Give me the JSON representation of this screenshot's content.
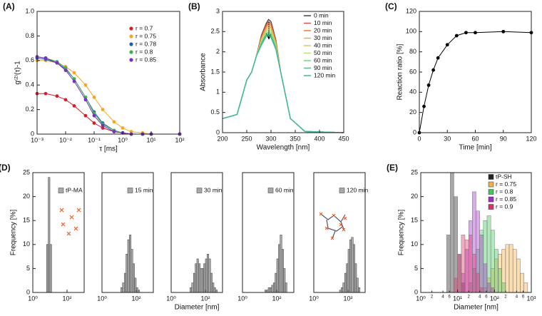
{
  "chart_data": [
    {
      "type": "line",
      "label": "(A)",
      "xlog": true,
      "markers": true,
      "legend": "upper right",
      "xlabel": "τ [ms]",
      "ylabel": "g⁽²⁾(τ)-1",
      "x": [
        0.001,
        0.002,
        0.005,
        0.01,
        0.02,
        0.05,
        0.1,
        0.2,
        0.5,
        1,
        2,
        5,
        10,
        100
      ],
      "xlim": [
        0.001,
        100
      ],
      "xticks": [
        {
          "value": 0.001,
          "label": "10⁻³"
        },
        {
          "value": 0.01,
          "label": "10⁻²"
        },
        {
          "value": 0.1,
          "label": "10⁻¹"
        },
        {
          "value": 1,
          "label": "10⁰"
        },
        {
          "value": 10,
          "label": "10¹"
        },
        {
          "value": 100,
          "label": "10²"
        }
      ],
      "ylim": [
        0,
        1
      ],
      "yticks": [
        0,
        0.2,
        0.4,
        0.6,
        0.8,
        {
          "value": 1,
          "label": "1.0"
        }
      ],
      "series": [
        {
          "name": "r = 0.7",
          "color": "#d0202a",
          "values": [
            0.33,
            0.33,
            0.31,
            0.28,
            0.23,
            0.15,
            0.09,
            0.05,
            0.02,
            0.01,
            0,
            0,
            0,
            0
          ]
        },
        {
          "name": "r = 0.75",
          "color": "#f5a623",
          "values": [
            0.6,
            0.6,
            0.58,
            0.55,
            0.5,
            0.4,
            0.3,
            0.2,
            0.1,
            0.05,
            0.02,
            0.01,
            0,
            0
          ]
        },
        {
          "name": "r = 0.78",
          "color": "#1f5fa8",
          "values": [
            0.62,
            0.61,
            0.58,
            0.53,
            0.45,
            0.3,
            0.18,
            0.09,
            0.03,
            0.01,
            0,
            0,
            0,
            0
          ]
        },
        {
          "name": "r = 0.8",
          "color": "#3cb44b",
          "values": [
            0.63,
            0.62,
            0.59,
            0.54,
            0.45,
            0.3,
            0.17,
            0.08,
            0.03,
            0.01,
            0,
            0,
            0,
            0
          ]
        },
        {
          "name": "r = 0.85",
          "color": "#7b2fbf",
          "values": [
            0.63,
            0.62,
            0.58,
            0.52,
            0.43,
            0.28,
            0.15,
            0.07,
            0.02,
            0.01,
            0,
            0,
            0,
            0
          ]
        }
      ]
    },
    {
      "type": "line",
      "label": "(B)",
      "legend": "upper right",
      "xlabel": "Wavelength [nm]",
      "ylabel": "Absorbance",
      "x": [
        200,
        230,
        250,
        260,
        270,
        280,
        290,
        295,
        300,
        310,
        320,
        340,
        370,
        450
      ],
      "xlim": [
        200,
        450
      ],
      "xticks": [
        200,
        250,
        300,
        350,
        400,
        450
      ],
      "ylim": [
        0,
        3
      ],
      "yticks": [
        0,
        0.5,
        1,
        1.5,
        2,
        2.5,
        3
      ],
      "series": [
        {
          "name": "0 min",
          "color": "#444444",
          "values": [
            0.35,
            0.45,
            1.3,
            1.5,
            1.9,
            2.4,
            2.7,
            2.8,
            2.75,
            2.3,
            1.5,
            0.35,
            0.03,
            0
          ]
        },
        {
          "name": "10 min",
          "color": "#d9534f",
          "values": [
            0.35,
            0.45,
            1.3,
            1.5,
            1.9,
            2.37,
            2.66,
            2.75,
            2.7,
            2.27,
            1.5,
            0.35,
            0.03,
            0
          ]
        },
        {
          "name": "20 min",
          "color": "#e8832a",
          "values": [
            0.35,
            0.45,
            1.3,
            1.5,
            1.9,
            2.34,
            2.62,
            2.7,
            2.65,
            2.24,
            1.5,
            0.35,
            0.03,
            0
          ]
        },
        {
          "name": "30 min",
          "color": "#f0a84a",
          "values": [
            0.35,
            0.45,
            1.3,
            1.5,
            1.9,
            2.31,
            2.58,
            2.65,
            2.6,
            2.21,
            1.5,
            0.35,
            0.03,
            0
          ]
        },
        {
          "name": "40 min",
          "color": "#d8c86a",
          "values": [
            0.35,
            0.45,
            1.3,
            1.5,
            1.9,
            2.28,
            2.54,
            2.6,
            2.55,
            2.18,
            1.5,
            0.35,
            0.03,
            0
          ]
        },
        {
          "name": "50 min",
          "color": "#b8e07a",
          "values": [
            0.35,
            0.45,
            1.3,
            1.5,
            1.9,
            2.25,
            2.5,
            2.55,
            2.5,
            2.15,
            1.5,
            0.35,
            0.03,
            0
          ]
        },
        {
          "name": "60 min",
          "color": "#6cd96c",
          "values": [
            0.35,
            0.45,
            1.3,
            1.5,
            1.9,
            2.22,
            2.46,
            2.5,
            2.45,
            2.12,
            1.5,
            0.35,
            0.03,
            0
          ]
        },
        {
          "name": "90 min",
          "color": "#3cc87a",
          "values": [
            0.35,
            0.45,
            1.3,
            1.5,
            1.9,
            2.19,
            2.42,
            2.45,
            2.4,
            2.09,
            1.5,
            0.35,
            0.03,
            0
          ]
        },
        {
          "name": "120 min",
          "color": "#3cb8a0",
          "values": [
            0.35,
            0.45,
            1.3,
            1.5,
            1.9,
            2.16,
            2.38,
            2.4,
            2.35,
            2.06,
            1.5,
            0.35,
            0.03,
            0
          ]
        }
      ]
    },
    {
      "type": "line",
      "label": "(C)",
      "markers": true,
      "xlabel": "Time [min]",
      "ylabel": "Reaction ratio [%]",
      "x": [
        0,
        5,
        10,
        15,
        20,
        30,
        40,
        50,
        60,
        90,
        120
      ],
      "xlim": [
        0,
        120
      ],
      "xticks": [
        0,
        30,
        60,
        90,
        120
      ],
      "ylim": [
        0,
        120
      ],
      "yticks": [
        0,
        20,
        40,
        60,
        80,
        100,
        120
      ],
      "series": [
        {
          "color": "#000000",
          "values": [
            0,
            26,
            47,
            62,
            74,
            87,
            96,
            99,
            99,
            100,
            99
          ]
        }
      ]
    },
    {
      "type": "histogram",
      "label": "(D)",
      "legend": "upper right",
      "ylabel": "Frequency [%]",
      "xlog": true,
      "xlim": [
        1,
        1000
      ],
      "xticks": [
        {
          "value": 1,
          "label": "10⁰"
        },
        {
          "value": 100,
          "label": "10²"
        }
      ],
      "ylim": [
        0,
        25
      ],
      "yticks": [
        0,
        5,
        10,
        15,
        20,
        25
      ],
      "series": [
        {
          "name": "tP-MA",
          "color": "#aaaaaa",
          "bins": [
            6.31,
            7.94,
            10,
            12.6
          ],
          "values": [
            10,
            24,
            10
          ]
        }
      ]
    },
    {
      "type": "histogram",
      "legend": "upper right",
      "xlog": true,
      "xlim": [
        1,
        1000
      ],
      "xticks": [
        {
          "value": 1,
          "label": "10⁰"
        },
        {
          "value": 100,
          "label": "10²"
        }
      ],
      "ylim": [
        0,
        25
      ],
      "series": [
        {
          "name": "15 min",
          "color": "#aaaaaa",
          "bins": [
            12.6,
            15.8,
            20,
            25.1,
            31.6,
            39.8,
            50.1,
            63.1,
            79.4,
            100,
            126,
            158
          ],
          "values": [
            1,
            2,
            4,
            8,
            11,
            12,
            9,
            6,
            3,
            1,
            0.5
          ]
        }
      ]
    },
    {
      "type": "histogram",
      "legend": "upper right",
      "xlabel": "Diameter [nm]",
      "xlog": true,
      "xlim": [
        1,
        1000
      ],
      "xticks": [
        {
          "value": 1,
          "label": "10⁰"
        },
        {
          "value": 100,
          "label": "10²"
        }
      ],
      "ylim": [
        0,
        25
      ],
      "series": [
        {
          "name": "30 min",
          "color": "#aaaaaa",
          "bins": [
            12.6,
            15.8,
            20,
            25.1,
            31.6,
            39.8,
            50.1,
            63.1,
            79.4,
            100,
            126,
            158,
            200,
            251,
            316,
            398,
            501
          ],
          "values": [
            1,
            2,
            4,
            6,
            7,
            6,
            5,
            5,
            6,
            7,
            8,
            7,
            4,
            2,
            1,
            0.5
          ]
        }
      ]
    },
    {
      "type": "histogram",
      "legend": "upper right",
      "xlog": true,
      "xlim": [
        1,
        1000
      ],
      "xticks": [
        {
          "value": 1,
          "label": "10⁰"
        },
        {
          "value": 100,
          "label": "10²"
        }
      ],
      "ylim": [
        0,
        25
      ],
      "series": [
        {
          "name": "60  min",
          "color": "#aaaaaa",
          "bins": [
            20,
            25.1,
            31.6,
            39.8,
            50.1,
            63.1,
            79.4,
            100,
            126,
            158,
            200,
            251,
            316,
            398
          ],
          "values": [
            0.5,
            0.5,
            1,
            1,
            1.5,
            2,
            4,
            7,
            10,
            12,
            9,
            5,
            2
          ]
        }
      ]
    },
    {
      "type": "histogram",
      "legend": "upper right",
      "xlog": true,
      "xlim": [
        1,
        1000
      ],
      "xticks": [
        {
          "value": 1,
          "label": "10⁰"
        },
        {
          "value": 100,
          "label": "10²"
        }
      ],
      "ylim": [
        0,
        25
      ],
      "series": [
        {
          "name": "120 min",
          "color": "#aaaaaa",
          "bins": [
            31.6,
            39.8,
            50.1,
            63.1,
            79.4,
            100,
            126,
            158,
            200,
            251,
            316,
            398,
            501
          ],
          "values": [
            0.5,
            1,
            2,
            4,
            6,
            9,
            11,
            11.5,
            10,
            6,
            3,
            1
          ]
        }
      ]
    },
    {
      "type": "histogram",
      "label": "(E)",
      "legend": "upper right",
      "overlay": true,
      "xlabel": "Diameter [nm]",
      "ylabel": "Frequency [%]",
      "xlog": true,
      "xlim": [
        1,
        1000
      ],
      "xticks": [
        {
          "value": 1,
          "label": "10⁰"
        },
        2,
        4,
        6,
        {
          "value": 10,
          "label": "10¹"
        },
        {
          "value": 20,
          "label": "2"
        },
        {
          "value": 40,
          "label": "4"
        },
        {
          "value": 60,
          "label": "6"
        },
        {
          "value": 100,
          "label": "10²"
        },
        {
          "value": 200,
          "label": "2"
        },
        {
          "value": 400,
          "label": "4"
        },
        {
          "value": 600,
          "label": "6"
        },
        {
          "value": 1000,
          "label": "10³"
        }
      ],
      "ylim": [
        0,
        25
      ],
      "yticks": [
        0,
        5,
        10,
        15,
        20,
        25
      ],
      "series": [
        {
          "name": "tP-SH",
          "color": "#222222",
          "bins": [
            5.01,
            6.31,
            7.94,
            10,
            12.6,
            15.8
          ],
          "values": [
            12,
            25,
            20,
            8,
            2
          ]
        },
        {
          "name": "r = 0.75",
          "color": "#f5b041",
          "bins": [
            50.1,
            63.1,
            79.4,
            100,
            126,
            158,
            200,
            251,
            316,
            398,
            501,
            631,
            794
          ],
          "values": [
            1,
            3,
            5,
            7,
            8,
            9,
            10,
            10,
            9,
            7,
            4,
            2
          ]
        },
        {
          "name": "r = 0.8",
          "color": "#3cc85a",
          "bins": [
            20,
            25.1,
            31.6,
            39.8,
            50.1,
            63.1,
            79.4,
            100,
            126,
            158,
            200
          ],
          "values": [
            2,
            5,
            9,
            13,
            15,
            16,
            13,
            9,
            5,
            2
          ]
        },
        {
          "name": "r = 0.85",
          "color": "#9b30c8",
          "bins": [
            12.6,
            15.8,
            20,
            25.1,
            31.6,
            39.8,
            50.1,
            63.1,
            79.4,
            100
          ],
          "values": [
            4,
            9,
            15,
            21,
            17,
            12,
            6,
            2,
            1
          ]
        },
        {
          "name": "r = 0.9",
          "color": "#e0306a",
          "bins": [
            7.94,
            10,
            12.6,
            15.8,
            20,
            25.1,
            31.6,
            39.8,
            50.1
          ],
          "values": [
            3,
            8,
            12,
            11,
            12,
            8,
            4,
            1
          ]
        }
      ]
    }
  ]
}
